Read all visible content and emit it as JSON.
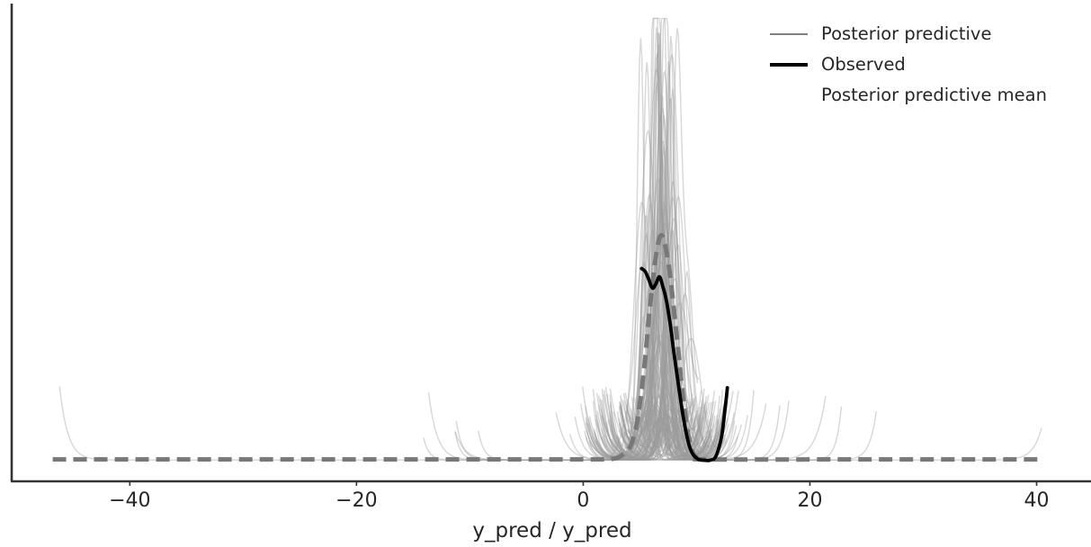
{
  "figure": {
    "background": "#ffffff",
    "spine_color": "#343434",
    "tick_label_color": "#262626"
  },
  "chart_data": {
    "type": "line",
    "subtype": "posterior_predictive_check_kde",
    "title": "",
    "xlabel": "y_pred / y_pred",
    "ylabel": "",
    "xlim": [
      -50.5,
      44.8
    ],
    "ylim_density": [
      0,
      1.04
    ],
    "grid": false,
    "x_ticks": [
      -40,
      -20,
      0,
      20,
      40
    ],
    "x_tick_labels": [
      "−40",
      "−20",
      "0",
      "20",
      "40"
    ],
    "legend": {
      "position": "upper right",
      "frame": false,
      "items": [
        {
          "label": "Posterior predictive",
          "color": "#7f7f7f",
          "style": "solid-thin"
        },
        {
          "label": "Observed",
          "color": "#000000",
          "style": "solid-thick"
        },
        {
          "label": "Posterior predictive mean",
          "color": "#787878",
          "style": "dashed-thick"
        }
      ]
    },
    "observed_curve": {
      "color": "#000000",
      "line_width": 3.8,
      "points": [
        [
          5.15,
          0.443
        ],
        [
          5.45,
          0.437
        ],
        [
          5.75,
          0.42
        ],
        [
          6.1,
          0.398
        ],
        [
          6.4,
          0.407
        ],
        [
          6.72,
          0.424
        ],
        [
          7.0,
          0.404
        ],
        [
          7.35,
          0.368
        ],
        [
          7.7,
          0.31
        ],
        [
          8.0,
          0.25
        ],
        [
          8.4,
          0.175
        ],
        [
          8.8,
          0.105
        ],
        [
          9.2,
          0.05
        ],
        [
          9.6,
          0.018
        ],
        [
          10.1,
          0.004
        ],
        [
          10.6,
          0.001
        ],
        [
          11.2,
          0.001
        ],
        [
          11.7,
          0.01
        ],
        [
          12.2,
          0.055
        ],
        [
          12.5,
          0.115
        ],
        [
          12.72,
          0.168
        ]
      ]
    },
    "mean_curve": {
      "color": "#787878",
      "line_width": 5,
      "dash": [
        15,
        8
      ],
      "points": [
        [
          -46.8,
          0.003
        ],
        [
          -30.0,
          0.003
        ],
        [
          -15.0,
          0.003
        ],
        [
          0.0,
          0.003
        ],
        [
          2.5,
          0.004
        ],
        [
          3.4,
          0.012
        ],
        [
          4.1,
          0.03
        ],
        [
          4.6,
          0.07
        ],
        [
          5.0,
          0.13
        ],
        [
          5.4,
          0.22
        ],
        [
          5.8,
          0.33
        ],
        [
          6.2,
          0.43
        ],
        [
          6.6,
          0.5
        ],
        [
          6.9,
          0.52
        ],
        [
          7.2,
          0.5
        ],
        [
          7.6,
          0.44
        ],
        [
          8.0,
          0.35
        ],
        [
          8.4,
          0.25
        ],
        [
          8.8,
          0.15
        ],
        [
          9.2,
          0.07
        ],
        [
          9.6,
          0.025
        ],
        [
          10.0,
          0.008
        ],
        [
          10.6,
          0.003
        ],
        [
          25.0,
          0.003
        ],
        [
          40.5,
          0.003
        ]
      ]
    },
    "posterior_predictive": {
      "n_curves": 130,
      "seed": 7,
      "color": "#9a9a9a",
      "opacity": 0.4,
      "line_width": 1.4,
      "peak_center_mean": 6.9,
      "peak_center_sd": 0.8,
      "support_min": -47.0,
      "support_max": 40.6,
      "outlier_tails": [
        {
          "x": -46.2,
          "side": "left",
          "height": 0.17
        },
        {
          "x": -11.2,
          "side": "left",
          "height": 0.09
        },
        {
          "x": -2.4,
          "side": "left",
          "height": 0.11
        },
        {
          "x": 14.6,
          "side": "right",
          "height": 0.12
        },
        {
          "x": 16.2,
          "side": "right",
          "height": 0.14
        },
        {
          "x": 18.2,
          "side": "right",
          "height": 0.15
        },
        {
          "x": 22.8,
          "side": "right",
          "height": 0.13
        },
        {
          "x": 40.5,
          "side": "right",
          "height": 0.08
        }
      ]
    }
  }
}
